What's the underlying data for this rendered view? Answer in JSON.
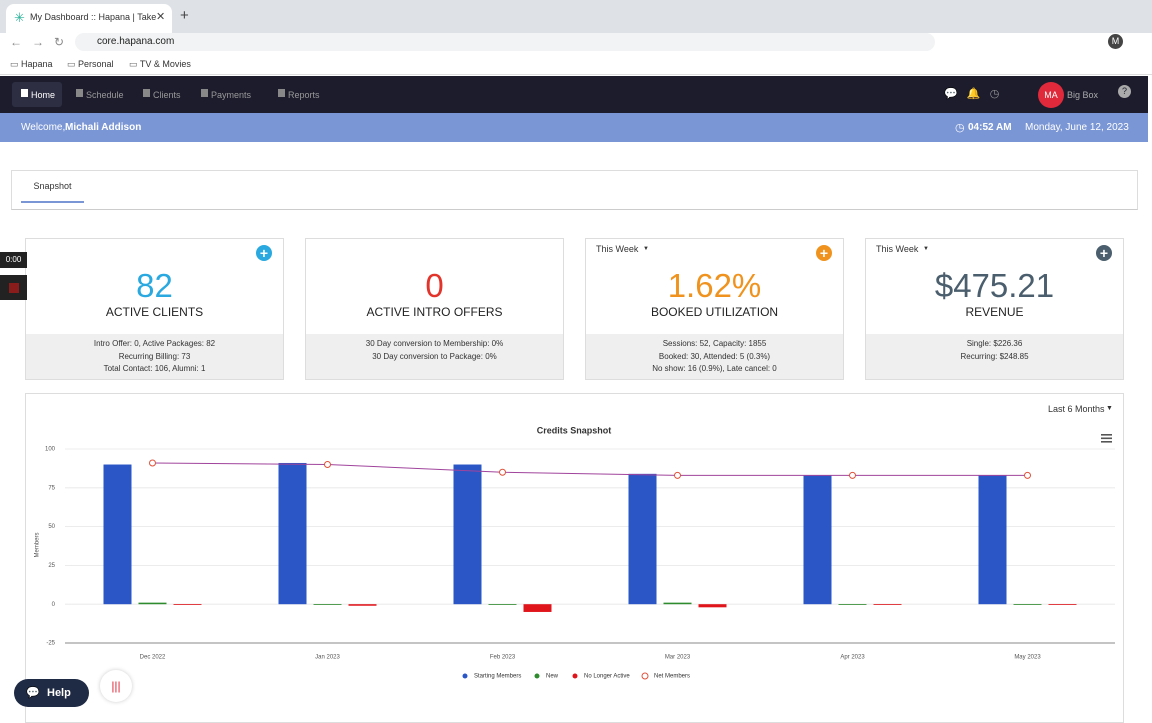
{
  "browser": {
    "tab_title": "My Dashboard :: Hapana | Take",
    "url": "core.hapana.com",
    "bookmarks": [
      "Hapana",
      "Personal",
      "TV & Movies"
    ],
    "profile": "M"
  },
  "nav": {
    "items": [
      "Home",
      "Schedule",
      "Clients",
      "Payments",
      "Reports"
    ],
    "avatar": "MA",
    "account": "Big Box"
  },
  "welcome": {
    "greeting": "Welcome,",
    "name": "Michali Addison",
    "time": "04:52 AM",
    "date": "Monday, June 12, 2023"
  },
  "tabs": [
    "Snapshot"
  ],
  "cards": [
    {
      "value": "82",
      "color": "#29a9e0",
      "label": "ACTIVE CLIENTS",
      "details": [
        "Intro Offer: 0, Active Packages: 82",
        "Recurring Billing: 73",
        "Total Contact: 106, Alumni: 1"
      ]
    },
    {
      "value": "0",
      "color": "#e2342b",
      "label": "ACTIVE INTRO OFFERS",
      "details": [
        "30 Day conversion to Membership: 0%",
        "30 Day conversion to Package: 0%"
      ]
    },
    {
      "period": "This Week",
      "value": "1.62%",
      "color": "#f0931e",
      "label": "BOOKED UTILIZATION",
      "details": [
        "Sessions: 52, Capacity: 1855",
        "Booked: 30, Attended: 5 (0.3%)",
        "No show: 16 (0.9%), Late cancel: 0"
      ]
    },
    {
      "period": "This Week",
      "value": "$475.21",
      "color": "#4a5e6d",
      "label": "REVENUE",
      "details": [
        "Single: $226.36",
        "Recurring: $248.85"
      ]
    }
  ],
  "chart_period": "Last 6 Months",
  "chart_data": {
    "type": "bar",
    "title": "Credits Snapshot",
    "y_label": "Members",
    "categories": [
      "Dec 2022",
      "Jan 2023",
      "Feb 2023",
      "Mar 2023",
      "Apr 2023",
      "May 2023"
    ],
    "series": [
      {
        "name": "Starting Members",
        "color": "#2a56c6",
        "values": [
          90,
          91,
          90,
          84,
          83,
          83
        ]
      },
      {
        "name": "New",
        "color": "#2e8b2e",
        "values": [
          1,
          0,
          0,
          1,
          0,
          0
        ]
      },
      {
        "name": "No Longer Active",
        "color": "#e0151b",
        "values": [
          0,
          -1,
          -5,
          -2,
          0,
          0
        ]
      },
      {
        "name": "Net Members",
        "color": "#e0513a",
        "type": "line",
        "values": [
          91,
          90,
          85,
          83,
          83,
          83
        ]
      }
    ],
    "ylim": [
      -25,
      100
    ],
    "yticks": [
      -25,
      0,
      25,
      50,
      75,
      100
    ],
    "grid": true
  },
  "timer": "0:00",
  "help": "Help"
}
